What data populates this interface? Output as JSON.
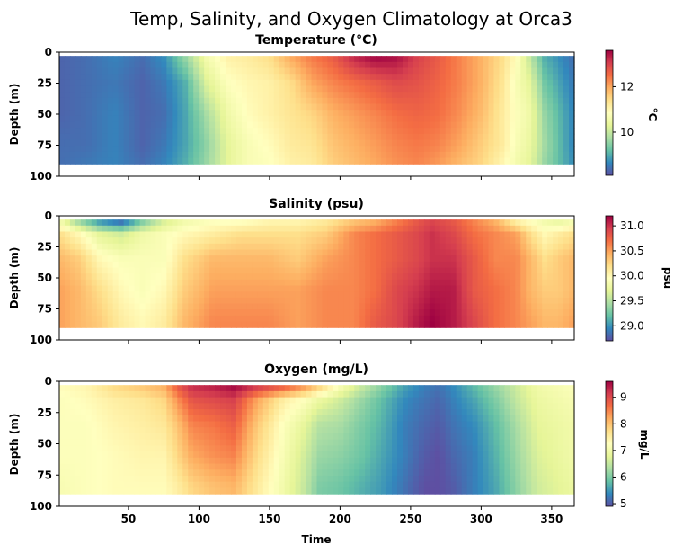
{
  "chart_data": {
    "type": "heatmap",
    "title": "Temp, Salinity, and Oxygen Climatology at Orca3",
    "xlabel": "Time",
    "xlim": [
      1,
      366
    ],
    "xticks": [
      50,
      100,
      150,
      200,
      250,
      300,
      350
    ],
    "ylim": [
      100,
      0
    ],
    "yticks": [
      0,
      25,
      50,
      75,
      100
    ],
    "data_depth_range": [
      3,
      90
    ],
    "panels": [
      {
        "title": "Temperature (°C)",
        "ylabel": "Depth (m)",
        "colorbar_label": "°C",
        "colormap": "Spectral_r",
        "vmin": 8.1,
        "vmax": 13.6,
        "cbar_ticks": [
          10,
          12
        ],
        "times": [
          1,
          20,
          40,
          60,
          75,
          90,
          105,
          120,
          135,
          150,
          165,
          180,
          195,
          210,
          225,
          240,
          255,
          270,
          285,
          300,
          315,
          325,
          335,
          345,
          366
        ],
        "depths": [
          3,
          25,
          50,
          75,
          90
        ],
        "values": [
          [
            8.3,
            8.3,
            8.3,
            8.4,
            8.4
          ],
          [
            8.4,
            8.4,
            8.4,
            8.4,
            8.5
          ],
          [
            8.6,
            8.5,
            8.6,
            8.6,
            8.6
          ],
          [
            8.4,
            8.3,
            8.3,
            8.3,
            8.4
          ],
          [
            8.7,
            8.5,
            8.4,
            8.5,
            8.6
          ],
          [
            9.6,
            9.0,
            8.9,
            8.9,
            9.0
          ],
          [
            10.6,
            10.2,
            9.7,
            9.5,
            9.6
          ],
          [
            11.1,
            10.8,
            10.5,
            10.3,
            10.3
          ],
          [
            11.2,
            11.0,
            10.9,
            10.7,
            10.7
          ],
          [
            11.4,
            11.1,
            11.1,
            10.9,
            10.8
          ],
          [
            12.0,
            11.4,
            11.3,
            11.2,
            11.1
          ],
          [
            12.4,
            12.0,
            11.5,
            11.3,
            11.2
          ],
          [
            12.7,
            12.3,
            11.9,
            11.7,
            11.6
          ],
          [
            13.3,
            12.5,
            12.1,
            11.9,
            11.8
          ],
          [
            13.6,
            12.7,
            12.3,
            12.1,
            12.0
          ],
          [
            13.5,
            12.9,
            12.5,
            12.3,
            12.2
          ],
          [
            13.0,
            12.8,
            12.6,
            12.4,
            12.3
          ],
          [
            12.7,
            12.6,
            12.5,
            12.3,
            12.1
          ],
          [
            12.3,
            12.3,
            12.2,
            12.0,
            11.8
          ],
          [
            11.9,
            11.9,
            11.8,
            11.6,
            11.5
          ],
          [
            11.4,
            11.3,
            11.2,
            11.2,
            11.0
          ],
          [
            10.9,
            10.7,
            10.8,
            10.7,
            10.6
          ],
          [
            9.9,
            10.3,
            10.5,
            10.4,
            10.3
          ],
          [
            9.0,
            9.3,
            9.6,
            9.7,
            9.6
          ],
          [
            8.4,
            8.5,
            8.6,
            8.6,
            8.7
          ]
        ]
      },
      {
        "title": "Salinity (psu)",
        "ylabel": "Depth (m)",
        "colorbar_label": "psu",
        "colormap": "Spectral_r",
        "vmin": 28.7,
        "vmax": 31.2,
        "cbar_ticks": [
          29.0,
          29.5,
          30.0,
          30.5,
          31.0
        ],
        "cbar_tick_labels": [
          "29.0",
          "29.5",
          "30.0",
          "30.5",
          "31.0"
        ],
        "times": [
          1,
          15,
          30,
          45,
          60,
          75,
          90,
          110,
          130,
          150,
          170,
          190,
          210,
          225,
          240,
          255,
          265,
          280,
          295,
          310,
          325,
          335,
          345,
          355,
          366
        ],
        "depths": [
          3,
          15,
          35,
          60,
          85
        ],
        "values": [
          [
            29.8,
            30.2,
            30.4,
            30.5,
            30.5
          ],
          [
            29.3,
            30.0,
            30.3,
            30.4,
            30.4
          ],
          [
            28.9,
            29.7,
            30.0,
            30.2,
            30.3
          ],
          [
            28.7,
            29.6,
            29.9,
            30.0,
            30.1
          ],
          [
            29.2,
            29.8,
            29.9,
            29.9,
            30.0
          ],
          [
            29.6,
            29.9,
            29.9,
            30.0,
            30.1
          ],
          [
            29.8,
            30.0,
            30.2,
            30.3,
            30.4
          ],
          [
            29.9,
            30.1,
            30.4,
            30.5,
            30.6
          ],
          [
            29.9,
            30.2,
            30.4,
            30.5,
            30.6
          ],
          [
            30.0,
            30.2,
            30.4,
            30.5,
            30.6
          ],
          [
            30.0,
            30.2,
            30.3,
            30.5,
            30.5
          ],
          [
            30.1,
            30.3,
            30.5,
            30.6,
            30.6
          ],
          [
            30.3,
            30.6,
            30.6,
            30.6,
            30.6
          ],
          [
            30.4,
            30.7,
            30.7,
            30.7,
            30.8
          ],
          [
            30.6,
            30.8,
            30.8,
            30.9,
            30.9
          ],
          [
            30.8,
            30.9,
            30.9,
            31.0,
            31.1
          ],
          [
            30.9,
            31.0,
            31.0,
            31.1,
            31.2
          ],
          [
            30.8,
            30.9,
            31.0,
            31.1,
            31.1
          ],
          [
            30.6,
            30.7,
            30.8,
            30.8,
            30.9
          ],
          [
            30.4,
            30.6,
            30.6,
            30.7,
            30.7
          ],
          [
            30.0,
            30.5,
            30.6,
            30.6,
            30.6
          ],
          [
            29.9,
            30.2,
            30.4,
            30.4,
            30.5
          ],
          [
            29.8,
            30.0,
            30.2,
            30.3,
            30.4
          ],
          [
            29.7,
            30.1,
            30.3,
            30.3,
            30.4
          ],
          [
            29.8,
            30.2,
            30.4,
            30.4,
            30.5
          ]
        ]
      },
      {
        "title": "Oxygen (mg/L)",
        "ylabel": "Depth (m)",
        "colorbar_label": "mg/L",
        "colormap": "Spectral_r",
        "vmin": 4.9,
        "vmax": 9.6,
        "cbar_ticks": [
          5,
          6,
          7,
          8,
          9
        ],
        "times": [
          1,
          20,
          40,
          60,
          75,
          85,
          95,
          110,
          125,
          140,
          160,
          175,
          185,
          200,
          215,
          230,
          245,
          260,
          270,
          280,
          295,
          310,
          325,
          340,
          366
        ],
        "depths": [
          3,
          15,
          35,
          60,
          85
        ],
        "values": [
          [
            7.3,
            7.2,
            7.2,
            7.2,
            7.1
          ],
          [
            7.4,
            7.3,
            7.2,
            7.2,
            7.2
          ],
          [
            7.8,
            7.5,
            7.4,
            7.3,
            7.3
          ],
          [
            8.0,
            7.6,
            7.5,
            7.4,
            7.3
          ],
          [
            8.2,
            7.8,
            7.6,
            7.4,
            7.3
          ],
          [
            8.9,
            8.4,
            8.0,
            7.8,
            7.5
          ],
          [
            9.3,
            8.9,
            8.5,
            8.2,
            7.8
          ],
          [
            9.4,
            9.0,
            8.6,
            8.4,
            8.0
          ],
          [
            9.6,
            9.1,
            8.8,
            8.5,
            8.1
          ],
          [
            9.3,
            8.3,
            8.0,
            7.8,
            7.6
          ],
          [
            9.0,
            7.5,
            7.2,
            7.1,
            7.0
          ],
          [
            8.5,
            7.2,
            6.8,
            6.6,
            6.5
          ],
          [
            8.0,
            6.9,
            6.4,
            6.2,
            6.0
          ],
          [
            7.2,
            6.6,
            6.3,
            6.1,
            5.9
          ],
          [
            6.6,
            6.2,
            6.0,
            5.9,
            5.7
          ],
          [
            6.1,
            5.8,
            5.7,
            5.6,
            5.5
          ],
          [
            5.6,
            5.4,
            5.3,
            5.3,
            5.2
          ],
          [
            5.3,
            5.2,
            5.1,
            5.0,
            4.9
          ],
          [
            5.2,
            5.1,
            5.0,
            4.9,
            4.9
          ],
          [
            5.4,
            5.3,
            5.2,
            5.1,
            5.0
          ],
          [
            5.8,
            5.6,
            5.4,
            5.3,
            5.3
          ],
          [
            6.2,
            6.0,
            5.8,
            5.7,
            5.6
          ],
          [
            6.6,
            6.5,
            6.3,
            6.2,
            6.1
          ],
          [
            7.0,
            6.9,
            6.8,
            6.7,
            6.6
          ],
          [
            7.2,
            7.1,
            7.0,
            7.0,
            6.9
          ]
        ]
      }
    ]
  }
}
